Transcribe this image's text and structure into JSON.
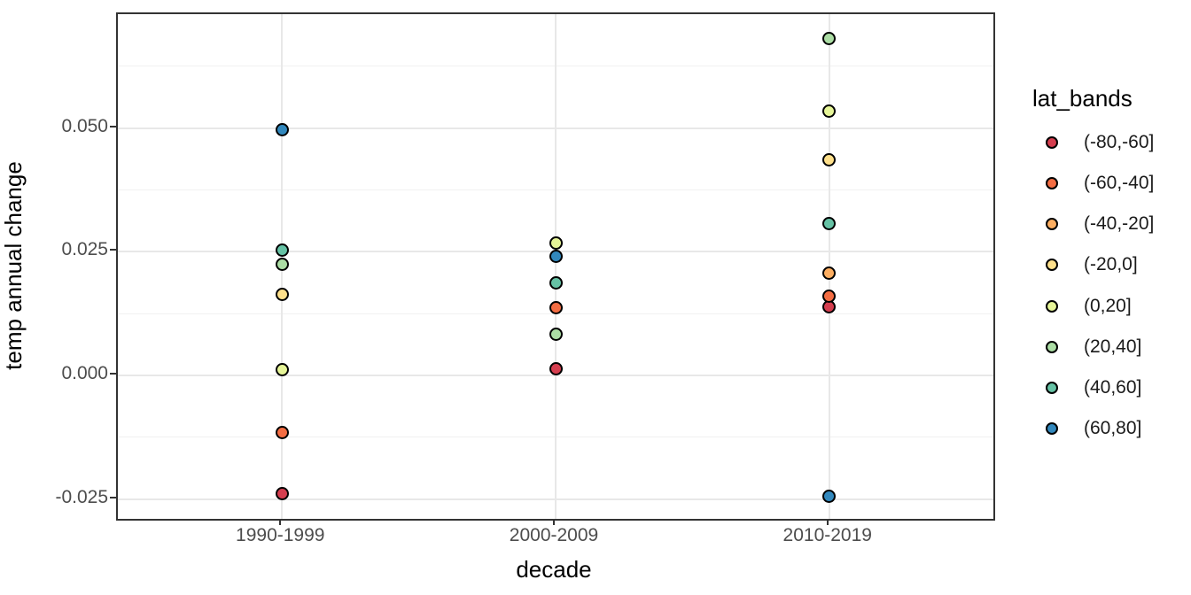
{
  "chart_data": {
    "type": "scatter",
    "title": "",
    "xlabel": "decade",
    "ylabel": "temp annual change",
    "x_categories": [
      "1990-1999",
      "2000-2009",
      "2010-2019"
    ],
    "ylim": [
      -0.029,
      0.073
    ],
    "grid": "on",
    "legend_position": "right",
    "legend_title": "lat_bands",
    "y_major_ticks": [
      {
        "value": 0.05,
        "label": "0.050"
      },
      {
        "value": 0.025,
        "label": "0.025"
      },
      {
        "value": 0.0,
        "label": "0.000"
      },
      {
        "value": -0.025,
        "label": "-0.025"
      }
    ],
    "y_minor_ticks": [
      0.0625,
      0.0375,
      0.0125,
      -0.0125
    ],
    "series": [
      {
        "name": "(-80,-60]",
        "color": "#d53e4f",
        "points": [
          {
            "x": "1990-1999",
            "y": -0.0239
          },
          {
            "x": "2000-2009",
            "y": 0.0014
          },
          {
            "x": "2010-2019",
            "y": 0.0139
          }
        ]
      },
      {
        "name": "(-60,-40]",
        "color": "#f46d43",
        "points": [
          {
            "x": "1990-1999",
            "y": -0.0116
          },
          {
            "x": "2000-2009",
            "y": 0.0137
          },
          {
            "x": "2010-2019",
            "y": 0.016
          }
        ]
      },
      {
        "name": "(-40,-20]",
        "color": "#fdae61",
        "points": [
          {
            "x": "2010-2019",
            "y": 0.0207
          }
        ]
      },
      {
        "name": "(-20,0]",
        "color": "#fee08b",
        "points": [
          {
            "x": "1990-1999",
            "y": 0.0164
          },
          {
            "x": "2010-2019",
            "y": 0.0435
          }
        ]
      },
      {
        "name": "(0,20]",
        "color": "#e6f598",
        "points": [
          {
            "x": "1990-1999",
            "y": 0.0012
          },
          {
            "x": "2000-2009",
            "y": 0.0267
          },
          {
            "x": "2010-2019",
            "y": 0.0534
          }
        ]
      },
      {
        "name": "(20,40]",
        "color": "#abdda4",
        "points": [
          {
            "x": "1990-1999",
            "y": 0.0224
          },
          {
            "x": "2000-2009",
            "y": 0.0084
          },
          {
            "x": "2010-2019",
            "y": 0.068
          }
        ]
      },
      {
        "name": "(40,60]",
        "color": "#66c2a5",
        "points": [
          {
            "x": "1990-1999",
            "y": 0.0253
          },
          {
            "x": "2000-2009",
            "y": 0.0187
          },
          {
            "x": "2010-2019",
            "y": 0.0306
          }
        ]
      },
      {
        "name": "(60,80]",
        "color": "#3288bd",
        "points": [
          {
            "x": "1990-1999",
            "y": 0.0497
          },
          {
            "x": "2000-2009",
            "y": 0.024
          },
          {
            "x": "2010-2019",
            "y": -0.0244
          }
        ]
      }
    ]
  }
}
